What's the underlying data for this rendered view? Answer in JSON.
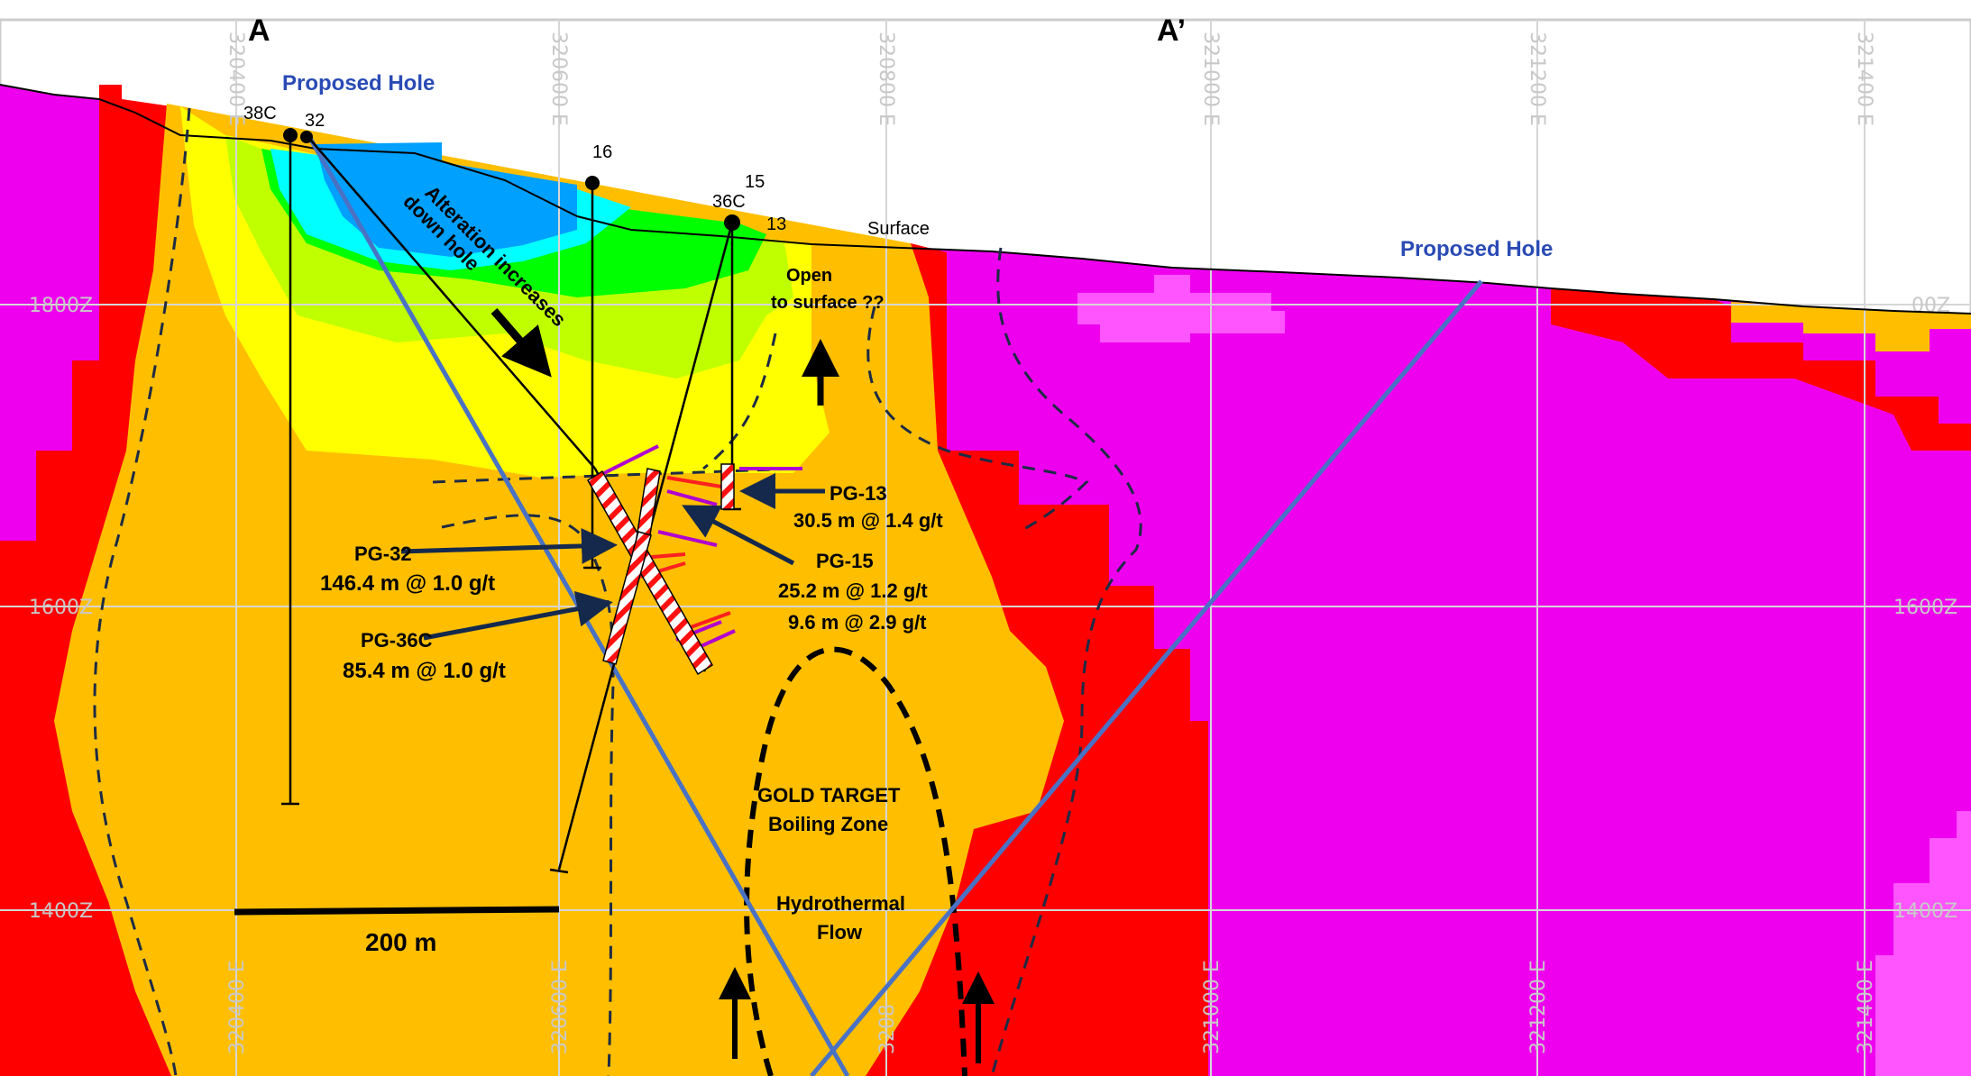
{
  "section": {
    "start_label": "A",
    "end_label": "A’"
  },
  "grid": {
    "easting_top": [
      "320400 E",
      "320600 E",
      "320800 E",
      "321000 E",
      "321200 E",
      "321400 E"
    ],
    "easting_bottom": [
      "320400 E",
      "320600 E",
      "3208",
      "321000 E",
      "321200 E",
      "321400 E"
    ],
    "elevation_left": [
      "1800Z",
      "1600Z",
      "1400Z"
    ],
    "elevation_right": [
      "00Z",
      "1600Z",
      "1400Z"
    ]
  },
  "holes": {
    "collars": [
      "38C",
      "32",
      "16",
      "15",
      "36C",
      "13"
    ],
    "proposed_left": "Proposed Hole",
    "proposed_right": "Proposed Hole"
  },
  "annotations": {
    "surface": "Surface",
    "alteration_1": "Alteration increases",
    "alteration_2": "down hole",
    "open_1": "Open",
    "open_2": "to surface ??",
    "gold_1": "GOLD TARGET",
    "gold_2": "Boiling Zone",
    "hydro_1": "Hydrothermal",
    "hydro_2": "Flow",
    "scale": "200 m"
  },
  "intercepts": {
    "pg13": {
      "name": "PG-13",
      "lines": [
        "30.5 m  @ 1.4 g/t"
      ]
    },
    "pg15": {
      "name": "PG-15",
      "lines": [
        "25.2 m  @ 1.2 g/t",
        "9.6 m @ 2.9 g/t"
      ]
    },
    "pg32": {
      "name": "PG-32",
      "lines": [
        "146.4 m @ 1.0 g/t"
      ]
    },
    "pg36c": {
      "name": "PG-36C",
      "lines": [
        "85.4 m @ 1.0 g/t"
      ]
    }
  },
  "colors": {
    "magenta": "#ee00ee",
    "pink": "#ff55ff",
    "red": "#ff0000",
    "orange": "#ffbf00",
    "yellow": "#ffff00",
    "yellow_green": "#bfff00",
    "green": "#00ff00",
    "cyan": "#00ffff",
    "blue": "#00a0ff",
    "proposed_hole": "#4a72c4",
    "fault_dash": "#1d2b45"
  }
}
